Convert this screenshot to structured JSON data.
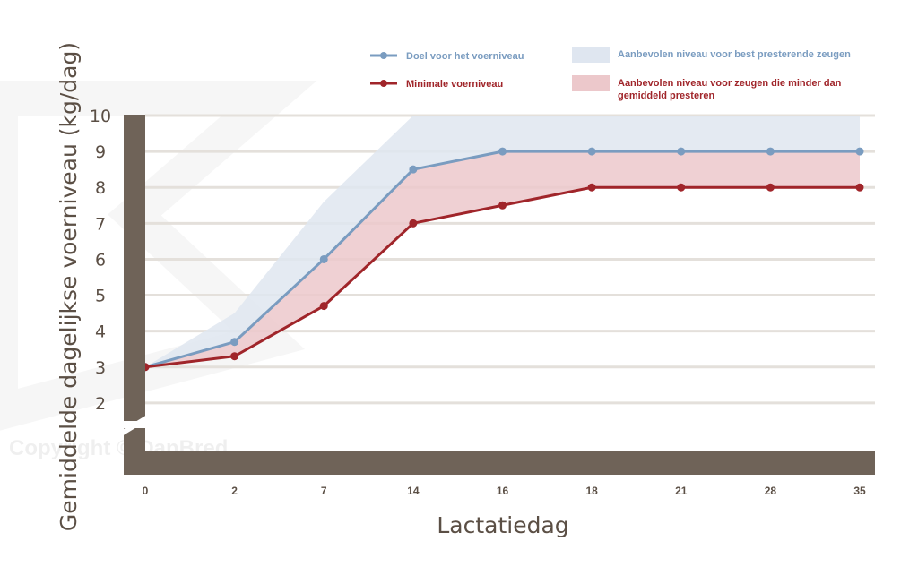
{
  "chart_data": {
    "type": "line",
    "xlabel": "Lactatiedag",
    "ylabel": "Gemiddelde dagelijkse voerniveau (kg/dag)",
    "categories": [
      "0",
      "2",
      "7",
      "14",
      "16",
      "18",
      "21",
      "28",
      "35"
    ],
    "yticks": [
      "2",
      "3",
      "4",
      "5",
      "6",
      "7",
      "8",
      "9",
      "10"
    ],
    "ylim": [
      1,
      10
    ],
    "grid": true,
    "legend_position": "top",
    "series": [
      {
        "name": "Doel voor het voerniveau",
        "color": "#7a9cc0",
        "values": [
          3.0,
          3.7,
          6.0,
          8.5,
          9.0,
          9.0,
          9.0,
          9.0,
          9.0
        ]
      },
      {
        "name": "Minimale voerniveau",
        "color": "#a0252a",
        "values": [
          3.0,
          3.3,
          4.7,
          7.0,
          7.5,
          8.0,
          8.0,
          8.0,
          8.0
        ]
      }
    ],
    "bands": [
      {
        "name": "Aanbevolen niveau voor best presterende zeugen",
        "color": "#dfe6f0",
        "lower": [
          3.0,
          3.7,
          6.0,
          8.5,
          9.0,
          9.0,
          9.0,
          9.0,
          9.0
        ],
        "upper": [
          3.0,
          4.5,
          7.6,
          10.0,
          10.0,
          10.0,
          10.0,
          10.0,
          10.0
        ]
      },
      {
        "name": "Aanbevolen niveau voor zeugen die minder dan gemiddeld presteren",
        "color": "#ecc8cb",
        "lower": [
          3.0,
          3.3,
          4.7,
          7.0,
          7.5,
          8.0,
          8.0,
          8.0,
          8.0
        ],
        "upper": [
          3.0,
          3.7,
          6.0,
          8.5,
          9.0,
          9.0,
          9.0,
          9.0,
          9.0
        ]
      }
    ],
    "legend": {
      "line1": "Doel voor het voerniveau",
      "line2": "Minimale voerniveau",
      "band1": "Aanbevolen niveau voor best presterende zeugen",
      "band2_l1": "Aanbevolen niveau voor zeugen die minder dan",
      "band2_l2": "gemiddeld presteren"
    },
    "watermark": "Copyright © DanBred",
    "colors": {
      "axis": "#6f6358",
      "grid": "#e4e0db",
      "text": "#5b4f45"
    }
  }
}
